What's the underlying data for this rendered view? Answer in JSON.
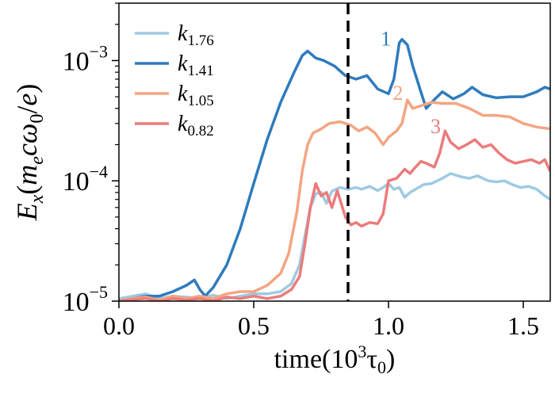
{
  "chart_data": {
    "type": "line",
    "title": "",
    "xlabel": "time(10³τ₀)",
    "ylabel": "Ex(mecω0/e)",
    "xlim": [
      0.0,
      1.6
    ],
    "ylim": [
      1e-05,
      0.003
    ],
    "yscale": "log",
    "xticks": [
      0.0,
      0.5,
      1.0,
      1.5
    ],
    "xtick_labels": [
      "0.0",
      "0.5",
      "1.0",
      "1.5"
    ],
    "yticks": [
      1e-05,
      0.0001,
      0.001
    ],
    "ytick_labels": [
      "10",
      "10",
      "10"
    ],
    "ytick_exponents": [
      "−5",
      "−4",
      "−3"
    ],
    "grid": false,
    "legend": "upper left",
    "vline": {
      "x": 0.85,
      "style": "dashed",
      "color": "#000000"
    },
    "annotations": [
      {
        "text": "1",
        "x": 0.99,
        "y": 0.00155,
        "color": "#2f7bbd"
      },
      {
        "text": "2",
        "x": 1.035,
        "y": 0.00055,
        "color": "#f4a582"
      },
      {
        "text": "3",
        "x": 1.175,
        "y": 0.00029,
        "color": "#ec7b7b"
      }
    ],
    "series": [
      {
        "name": "k1.76",
        "label_base": "k",
        "label_sub": "1.76",
        "color": "#9ecae1",
        "points": [
          [
            0,
            1.05e-05
          ],
          [
            0.05,
            1.1e-05
          ],
          [
            0.1,
            1.15e-05
          ],
          [
            0.15,
            1.05e-05
          ],
          [
            0.2,
            1.1e-05
          ],
          [
            0.25,
            1.08e-05
          ],
          [
            0.3,
            1.05e-05
          ],
          [
            0.35,
            1.12e-05
          ],
          [
            0.4,
            1.05e-05
          ],
          [
            0.45,
            1.1e-05
          ],
          [
            0.5,
            1.15e-05
          ],
          [
            0.55,
            1.15e-05
          ],
          [
            0.6,
            1.2e-05
          ],
          [
            0.64,
            1.4e-05
          ],
          [
            0.67,
            2e-05
          ],
          [
            0.69,
            3.5e-05
          ],
          [
            0.71,
            6e-05
          ],
          [
            0.73,
            7.8e-05
          ],
          [
            0.75,
            8e-05
          ],
          [
            0.77,
            6.5e-05
          ],
          [
            0.79,
            8.2e-05
          ],
          [
            0.82,
            8.8e-05
          ],
          [
            0.85,
            8.5e-05
          ],
          [
            0.88,
            8.8e-05
          ],
          [
            0.9,
            8.5e-05
          ],
          [
            0.93,
            9e-05
          ],
          [
            0.96,
            8.3e-05
          ],
          [
            0.98,
            8.8e-05
          ],
          [
            1.0,
            9.5e-05
          ],
          [
            1.02,
            8.5e-05
          ],
          [
            1.04,
            8.8e-05
          ],
          [
            1.06,
            7.3e-05
          ],
          [
            1.08,
            8e-05
          ],
          [
            1.1,
            8.5e-05
          ],
          [
            1.13,
            9.3e-05
          ],
          [
            1.16,
            9.5e-05
          ],
          [
            1.2,
            0.000105
          ],
          [
            1.23,
            0.000115
          ],
          [
            1.27,
            0.000108
          ],
          [
            1.3,
            0.000105
          ],
          [
            1.33,
            0.00011
          ],
          [
            1.37,
            0.0001
          ],
          [
            1.4,
            9.8e-05
          ],
          [
            1.43,
            0.0001
          ],
          [
            1.46,
            9.3e-05
          ],
          [
            1.49,
            8.8e-05
          ],
          [
            1.52,
            9e-05
          ],
          [
            1.55,
            8.5e-05
          ],
          [
            1.58,
            7.5e-05
          ],
          [
            1.6,
            7e-05
          ]
        ]
      },
      {
        "name": "k1.41",
        "label_base": "k",
        "label_sub": "1.41",
        "color": "#2f7bbd",
        "points": [
          [
            0,
            1e-05
          ],
          [
            0.05,
            1.05e-05
          ],
          [
            0.1,
            1.1e-05
          ],
          [
            0.15,
            1.1e-05
          ],
          [
            0.2,
            1.2e-05
          ],
          [
            0.25,
            1.35e-05
          ],
          [
            0.28,
            1.5e-05
          ],
          [
            0.3,
            1.25e-05
          ],
          [
            0.32,
            1.1e-05
          ],
          [
            0.35,
            1.3e-05
          ],
          [
            0.4,
            2e-05
          ],
          [
            0.45,
            4e-05
          ],
          [
            0.5,
            9.5e-05
          ],
          [
            0.55,
            0.00022
          ],
          [
            0.6,
            0.00045
          ],
          [
            0.65,
            0.0008
          ],
          [
            0.68,
            0.0011
          ],
          [
            0.7,
            0.0012
          ],
          [
            0.73,
            0.00105
          ],
          [
            0.76,
            0.001
          ],
          [
            0.8,
            0.0009
          ],
          [
            0.84,
            0.00075
          ],
          [
            0.88,
            0.0007
          ],
          [
            0.92,
            0.00075
          ],
          [
            0.96,
            0.00058
          ],
          [
            1.0,
            0.00053
          ],
          [
            1.02,
            0.0007
          ],
          [
            1.04,
            0.0014
          ],
          [
            1.05,
            0.0015
          ],
          [
            1.07,
            0.00135
          ],
          [
            1.09,
            0.0009
          ],
          [
            1.12,
            0.00055
          ],
          [
            1.14,
            0.0004
          ],
          [
            1.16,
            0.00045
          ],
          [
            1.2,
            0.00055
          ],
          [
            1.24,
            0.00048
          ],
          [
            1.28,
            0.00053
          ],
          [
            1.31,
            0.0006
          ],
          [
            1.35,
            0.00052
          ],
          [
            1.4,
            0.00049
          ],
          [
            1.45,
            0.0005
          ],
          [
            1.5,
            0.0005
          ],
          [
            1.55,
            0.00055
          ],
          [
            1.58,
            0.0006
          ],
          [
            1.6,
            0.00058
          ]
        ]
      },
      {
        "name": "k1.05",
        "label_base": "k",
        "label_sub": "1.05",
        "color": "#f4a582",
        "points": [
          [
            0,
            1e-05
          ],
          [
            0.05,
            1.05e-05
          ],
          [
            0.1,
            1.08e-05
          ],
          [
            0.15,
            1.02e-05
          ],
          [
            0.2,
            1.1e-05
          ],
          [
            0.25,
            1.05e-05
          ],
          [
            0.3,
            1.1e-05
          ],
          [
            0.35,
            1.05e-05
          ],
          [
            0.4,
            1.15e-05
          ],
          [
            0.45,
            1.2e-05
          ],
          [
            0.5,
            1.2e-05
          ],
          [
            0.55,
            1.35e-05
          ],
          [
            0.6,
            1.7e-05
          ],
          [
            0.63,
            2.5e-05
          ],
          [
            0.66,
            5.5e-05
          ],
          [
            0.68,
            0.00012
          ],
          [
            0.7,
            0.0002
          ],
          [
            0.72,
            0.00025
          ],
          [
            0.75,
            0.00027
          ],
          [
            0.78,
            0.0003
          ],
          [
            0.82,
            0.00031
          ],
          [
            0.86,
            0.00029
          ],
          [
            0.89,
            0.00026
          ],
          [
            0.92,
            0.00028
          ],
          [
            0.95,
            0.00025
          ],
          [
            0.98,
            0.0002
          ],
          [
            1.0,
            0.00023
          ],
          [
            1.03,
            0.00026
          ],
          [
            1.05,
            0.0003
          ],
          [
            1.07,
            0.00047
          ],
          [
            1.09,
            0.0004
          ],
          [
            1.12,
            0.00042
          ],
          [
            1.16,
            0.00045
          ],
          [
            1.2,
            0.00044
          ],
          [
            1.25,
            0.00044
          ],
          [
            1.3,
            0.0004
          ],
          [
            1.35,
            0.00035
          ],
          [
            1.4,
            0.00035
          ],
          [
            1.45,
            0.00034
          ],
          [
            1.5,
            0.0003
          ],
          [
            1.55,
            0.00028
          ],
          [
            1.6,
            0.00027
          ]
        ]
      },
      {
        "name": "k0.82",
        "label_base": "k",
        "label_sub": "0.82",
        "color": "#ec7b7b",
        "points": [
          [
            0,
            1e-05
          ],
          [
            0.05,
            1.03e-05
          ],
          [
            0.1,
            1.05e-05
          ],
          [
            0.15,
            1e-05
          ],
          [
            0.2,
            1.05e-05
          ],
          [
            0.25,
            1.02e-05
          ],
          [
            0.3,
            1.05e-05
          ],
          [
            0.35,
            1e-05
          ],
          [
            0.4,
            1.08e-05
          ],
          [
            0.45,
            1.05e-05
          ],
          [
            0.5,
            1.1e-05
          ],
          [
            0.55,
            1.05e-05
          ],
          [
            0.6,
            1.1e-05
          ],
          [
            0.64,
            1.25e-05
          ],
          [
            0.67,
            1.6e-05
          ],
          [
            0.69,
            3e-05
          ],
          [
            0.71,
            6e-05
          ],
          [
            0.73,
            9.5e-05
          ],
          [
            0.75,
            7.5e-05
          ],
          [
            0.77,
            8e-05
          ],
          [
            0.79,
            6e-05
          ],
          [
            0.81,
            8.3e-05
          ],
          [
            0.84,
            5e-05
          ],
          [
            0.86,
            4.3e-05
          ],
          [
            0.88,
            4.5e-05
          ],
          [
            0.9,
            4.2e-05
          ],
          [
            0.93,
            4.5e-05
          ],
          [
            0.96,
            4.4e-05
          ],
          [
            0.98,
            5.3e-05
          ],
          [
            1.0,
            0.0001
          ],
          [
            1.03,
            0.000105
          ],
          [
            1.06,
            0.000125
          ],
          [
            1.08,
            0.000115
          ],
          [
            1.1,
            0.00013
          ],
          [
            1.12,
            0.000145
          ],
          [
            1.14,
            0.00014
          ],
          [
            1.17,
            0.00013
          ],
          [
            1.19,
            0.00017
          ],
          [
            1.21,
            0.00026
          ],
          [
            1.23,
            0.00021
          ],
          [
            1.26,
            0.000185
          ],
          [
            1.29,
            0.0002
          ],
          [
            1.32,
            0.00022
          ],
          [
            1.35,
            0.00019
          ],
          [
            1.38,
            0.0002
          ],
          [
            1.41,
            0.00017
          ],
          [
            1.44,
            0.00015
          ],
          [
            1.47,
            0.00014
          ],
          [
            1.5,
            0.000145
          ],
          [
            1.53,
            0.00015
          ],
          [
            1.56,
            0.00014
          ],
          [
            1.58,
            0.00015
          ],
          [
            1.6,
            0.00012
          ]
        ]
      }
    ]
  }
}
